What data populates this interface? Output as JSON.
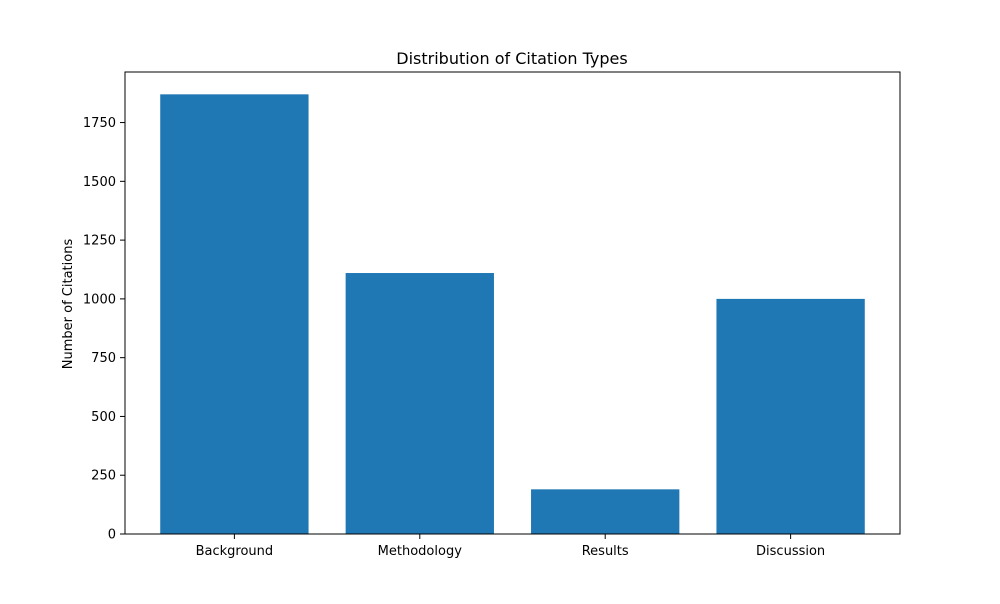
{
  "chart_data": {
    "type": "bar",
    "title": "Distribution of Citation Types",
    "xlabel": "",
    "ylabel": "Number of Citations",
    "categories": [
      "Background",
      "Methodology",
      "Results",
      "Discussion"
    ],
    "values": [
      1870,
      1110,
      190,
      1000
    ],
    "ylim": [
      0,
      1965
    ],
    "yticks": [
      0,
      250,
      500,
      750,
      1000,
      1250,
      1500,
      1750
    ],
    "grid": false,
    "legend": "none",
    "bar_color": "#1f77b4"
  }
}
